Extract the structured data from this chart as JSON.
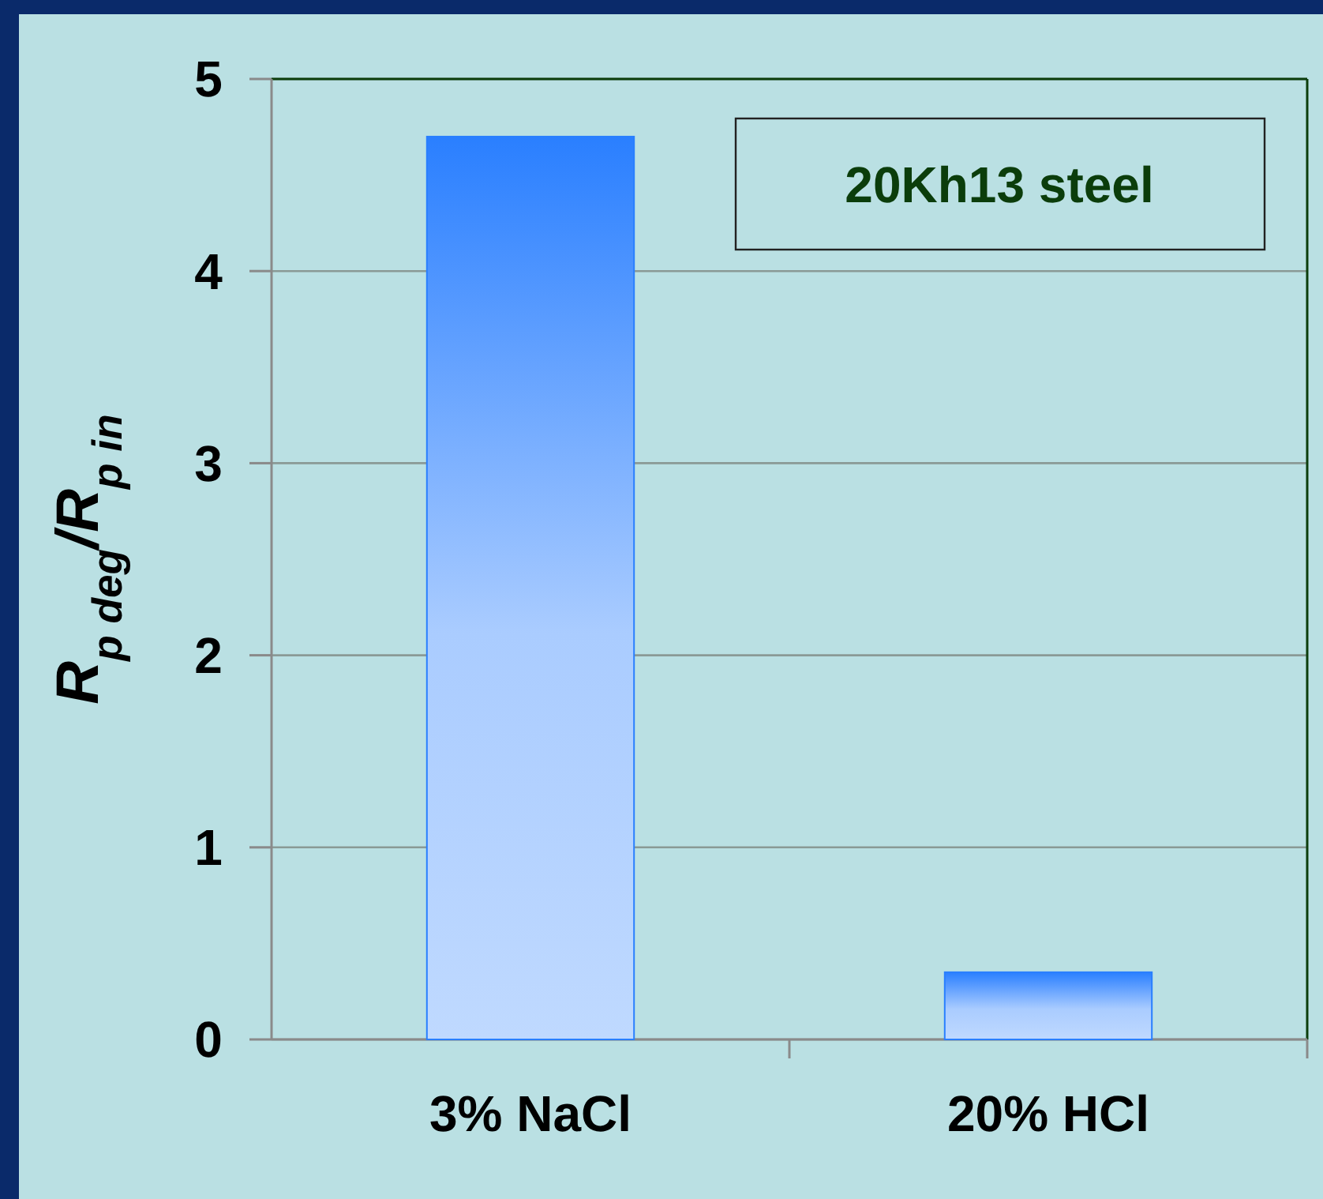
{
  "chart_data": {
    "type": "bar",
    "categories": [
      "3% NaCl",
      "20% HCl"
    ],
    "values": [
      4.7,
      0.35
    ],
    "color": "#2a7fff",
    "ylabel": "R$_{p deg}$/R$_{p in}$",
    "annotations": [
      "20Kh13 steel"
    ],
    "ylim": [
      0,
      5
    ],
    "yticks": [
      0,
      1,
      2,
      3,
      4,
      5
    ],
    "grid": "y"
  }
}
